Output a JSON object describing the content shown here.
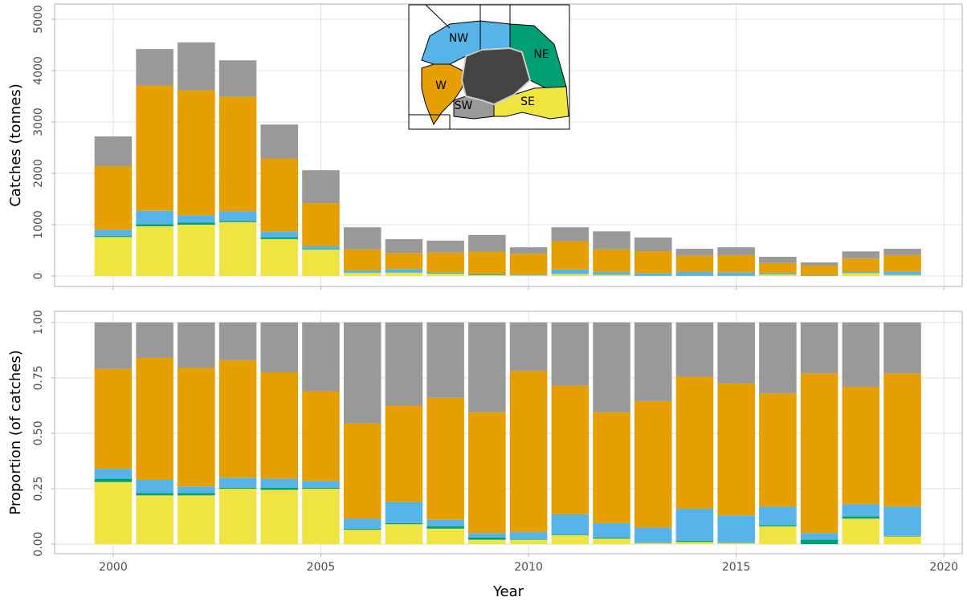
{
  "chart_data": [
    {
      "type": "stacked_bar",
      "ylabel": "Catches (tonnes)",
      "x": [
        2000,
        2001,
        2002,
        2003,
        2004,
        2005,
        2006,
        2007,
        2008,
        2009,
        2010,
        2011,
        2012,
        2013,
        2014,
        2015,
        2016,
        2017,
        2018,
        2019
      ],
      "series": [
        {
          "name": "SE",
          "color": "#f0e442",
          "values": [
            760,
            970,
            1000,
            1050,
            720,
            515,
            62,
            65,
            48,
            16,
            11,
            38,
            22,
            4,
            5,
            3,
            30,
            0,
            55,
            19
          ]
        },
        {
          "name": "NE",
          "color": "#009e73",
          "values": [
            20,
            40,
            45,
            20,
            30,
            10,
            5,
            4,
            7,
            8,
            1,
            3,
            4,
            2,
            3,
            1,
            2,
            5,
            5,
            1
          ]
        },
        {
          "name": "NW",
          "color": "#56b4e9",
          "values": [
            120,
            260,
            140,
            190,
            120,
            60,
            43,
            68,
            21,
            16,
            18,
            87,
            57,
            51,
            77,
            69,
            32,
            8,
            26,
            70
          ]
        },
        {
          "name": "W",
          "color": "#e69f00",
          "values": [
            1240,
            2440,
            2430,
            2230,
            1420,
            835,
            410,
            313,
            380,
            436,
            406,
            551,
            435,
            427,
            315,
            333,
            191,
            191,
            254,
            318
          ]
        },
        {
          "name": "SW",
          "color": "#999999",
          "values": [
            580,
            710,
            935,
            710,
            660,
            640,
            430,
            270,
            234,
            324,
            124,
            271,
            352,
            266,
            130,
            154,
            120,
            61,
            140,
            122
          ]
        }
      ],
      "xlim": [
        1998.59,
        2020.44
      ],
      "xticks": [
        2000,
        2005,
        2010,
        2015,
        2020
      ],
      "ylim": [
        -203,
        5297
      ],
      "yticks": [
        0,
        1000,
        2000,
        3000,
        4000,
        5000
      ],
      "grid": true
    },
    {
      "type": "stacked_bar",
      "ylabel": "Proportion (of catches)",
      "xlabel": "Year",
      "x": [
        2000,
        2001,
        2002,
        2003,
        2004,
        2005,
        2006,
        2007,
        2008,
        2009,
        2010,
        2011,
        2012,
        2013,
        2014,
        2015,
        2016,
        2017,
        2018,
        2019
      ],
      "series": [
        {
          "color": "#f0e442",
          "values": [
            0.28,
            0.22,
            0.22,
            0.25,
            0.245,
            0.25,
            0.065,
            0.09,
            0.07,
            0.02,
            0.02,
            0.04,
            0.025,
            0.005,
            0.01,
            0.005,
            0.08,
            0,
            0.115,
            0.035
          ]
        },
        {
          "color": "#009e73",
          "values": [
            0.015,
            0.01,
            0.01,
            0.005,
            0.01,
            0.005,
            0.005,
            0.005,
            0.01,
            0.01,
            0.002,
            0.003,
            0.005,
            0.002,
            0.005,
            0.002,
            0.005,
            0.02,
            0.01,
            0.002
          ]
        },
        {
          "color": "#56b4e9",
          "values": [
            0.045,
            0.06,
            0.03,
            0.045,
            0.04,
            0.03,
            0.045,
            0.095,
            0.03,
            0.02,
            0.033,
            0.092,
            0.065,
            0.068,
            0.145,
            0.123,
            0.085,
            0.03,
            0.055,
            0.133
          ]
        },
        {
          "color": "#e69f00",
          "values": [
            0.45,
            0.55,
            0.535,
            0.53,
            0.48,
            0.405,
            0.43,
            0.435,
            0.55,
            0.545,
            0.725,
            0.58,
            0.5,
            0.57,
            0.595,
            0.595,
            0.51,
            0.72,
            0.53,
            0.6
          ]
        },
        {
          "color": "#999999",
          "values": [
            0.21,
            0.16,
            0.205,
            0.17,
            0.225,
            0.31,
            0.455,
            0.375,
            0.34,
            0.405,
            0.22,
            0.285,
            0.405,
            0.355,
            0.245,
            0.275,
            0.32,
            0.23,
            0.29,
            0.23
          ]
        }
      ],
      "xlim": [
        1998.59,
        2020.44
      ],
      "xticks": [
        2000,
        2005,
        2010,
        2015,
        2020
      ],
      "ylim": [
        -0.043,
        1.05
      ],
      "yticks": [
        {
          "value": 0,
          "label": "0.00"
        },
        {
          "value": 0.25,
          "label": "0.25"
        },
        {
          "value": 0.5,
          "label": "0.50"
        },
        {
          "value": 0.75,
          "label": "0.75"
        },
        {
          "value": 1,
          "label": "1.00"
        }
      ],
      "grid": true
    }
  ]
}
